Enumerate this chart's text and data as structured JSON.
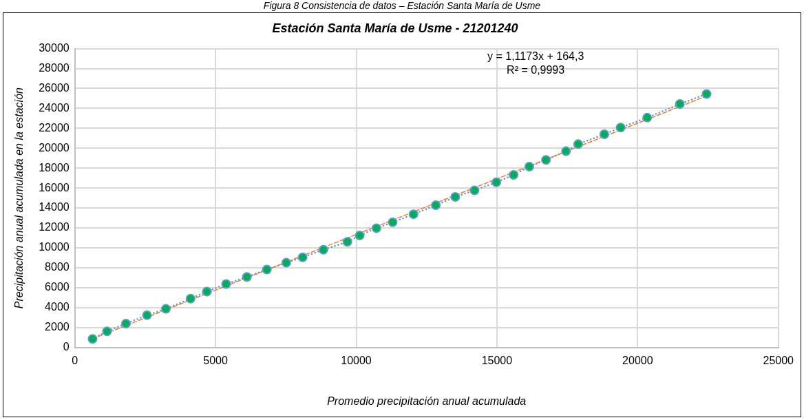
{
  "chart_data": {
    "type": "scatter",
    "title": "Estación Santa María de Usme - 21201240",
    "xlabel": "Promedio precipitación anual acumulada",
    "ylabel": "Precipitación anual acumulada en la estación",
    "annotations": [
      "Figura 8 Consistencia de datos – Estación Santa María de Usme",
      "y = 1,1173x + 164,3",
      "R² = 0,9993"
    ],
    "x": [
      630,
      1145,
      1816,
      2565,
      3236,
      4114,
      4693,
      5377,
      6114,
      6823,
      7515,
      8096,
      8833,
      9685,
      10124,
      10718,
      11294,
      12035,
      12828,
      13520,
      14205,
      14979,
      15591,
      16150,
      16743,
      17454,
      17886,
      18815,
      19396,
      20340,
      21500,
      22450
    ],
    "series": [
      {
        "type": "line",
        "color": "#5b9bd5",
        "line_style": "dotted",
        "marker": "none",
        "values": [
          855,
          1617,
          2400,
          3230,
          3870,
          4895,
          5608,
          6365,
          7076,
          7815,
          8503,
          9050,
          9810,
          10600,
          11240,
          11972,
          12565,
          13373,
          14275,
          15107,
          15770,
          16582,
          17316,
          18150,
          18830,
          19700,
          20410,
          21400,
          22070,
          23070,
          24440,
          25440
        ]
      },
      {
        "type": "line",
        "color": "#ed7d31",
        "line_style": "dashed",
        "marker": "none",
        "x": [
          630,
          22450
        ],
        "values": [
          868,
          25247
        ]
      },
      {
        "type": "scatter",
        "color": "#00b050",
        "marker": "circle",
        "values": [
          855,
          1617,
          2400,
          3230,
          3870,
          4895,
          5608,
          6365,
          7076,
          7815,
          8503,
          9050,
          9810,
          10600,
          11240,
          11972,
          12565,
          13373,
          14275,
          15107,
          15770,
          16582,
          17316,
          18150,
          18830,
          19700,
          20410,
          21400,
          22070,
          23070,
          24440,
          25440
        ]
      }
    ],
    "xlim": [
      0,
      25000
    ],
    "xticks": [
      0,
      5000,
      10000,
      15000,
      20000,
      25000
    ],
    "ylim": [
      0,
      30000
    ],
    "yticks": [
      0,
      2000,
      4000,
      6000,
      8000,
      10000,
      12000,
      14000,
      16000,
      18000,
      20000,
      22000,
      24000,
      26000,
      28000,
      30000
    ],
    "grid": true,
    "legend": false
  }
}
